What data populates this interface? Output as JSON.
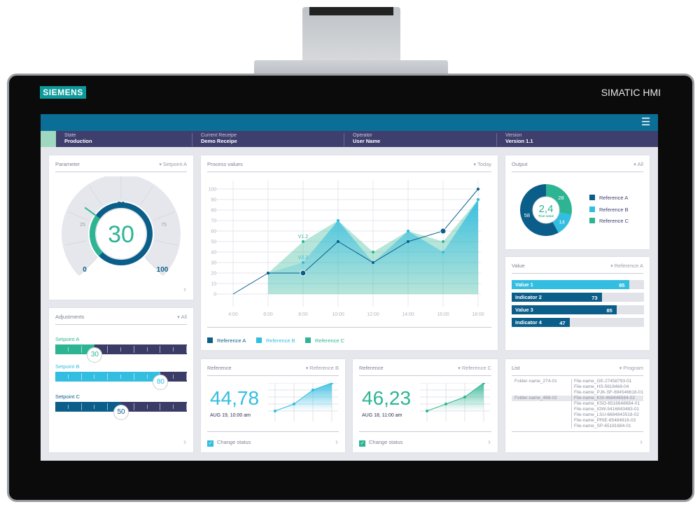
{
  "device": {
    "logo": "SIEMENS",
    "brand": "SIMATIC HMI"
  },
  "header": {
    "menu_icon": "hamburger-icon",
    "status": [
      {
        "label": "State",
        "value": "Production"
      },
      {
        "label": "Current Receipe",
        "value": "Demo Receipe"
      },
      {
        "label": "Operator",
        "value": "User Name"
      },
      {
        "label": "Version",
        "value": "Version 1.1"
      }
    ]
  },
  "colors": {
    "dark_blue": "#0b5e8a",
    "light_blue": "#33bde0",
    "green": "#2db593",
    "navy": "#3a3b67"
  },
  "parameter": {
    "title": "Parameter",
    "filter": "Setpoint A",
    "value": "30",
    "value_num": 30,
    "scale": [
      "0",
      "25",
      "50",
      "75",
      "100"
    ]
  },
  "adjustments": {
    "title": "Adjustments",
    "filter": "All",
    "sliders": [
      {
        "label": "Setpoint A",
        "value": "30",
        "level": 30,
        "color": "#2db593"
      },
      {
        "label": "Setpoint B",
        "value": "80",
        "level": 80,
        "color": "#33bde0"
      },
      {
        "label": "Setpoint C",
        "value": "50",
        "level": 50,
        "color": "#0b5e8a"
      }
    ]
  },
  "process": {
    "title": "Process values",
    "filter": "Today"
  },
  "chart_data": {
    "type": "area",
    "x": [
      "4:00",
      "6:00",
      "8:00",
      "10:00",
      "12:00",
      "14:00",
      "16:00",
      "18:00"
    ],
    "yticks": [
      0,
      10,
      20,
      30,
      40,
      50,
      60,
      70,
      80,
      90,
      100
    ],
    "ylim": [
      0,
      100
    ],
    "grid": true,
    "legend": "bottom",
    "series": [
      {
        "name": "Reference A",
        "color": "#0b5e8a",
        "values": [
          0,
          20,
          20,
          50,
          30,
          50,
          60,
          100
        ]
      },
      {
        "name": "Reference B",
        "color": "#33bde0",
        "values": [
          null,
          20,
          30,
          70,
          30,
          60,
          40,
          90
        ]
      },
      {
        "name": "Reference C",
        "color": "#2db593",
        "values": [
          null,
          20,
          50,
          70,
          40,
          60,
          50,
          90
        ]
      }
    ],
    "annotations": [
      {
        "text": "V1.2",
        "x": "8:00",
        "series": "Reference C"
      },
      {
        "text": "V2.3",
        "x": "8:00",
        "series": "Reference B"
      }
    ]
  },
  "output": {
    "title": "Output",
    "filter": "All",
    "center_value": "2,4",
    "center_label": "True value",
    "slices": [
      {
        "name": "Reference C",
        "value": 28,
        "color": "#2db593"
      },
      {
        "name": "Reference B",
        "value": 14,
        "color": "#33bde0"
      },
      {
        "name": "Reference A",
        "value": 58,
        "color": "#0b5e8a"
      }
    ],
    "legend": [
      "Reference A",
      "Reference B",
      "Reference C"
    ]
  },
  "value": {
    "title": "Value",
    "filter": "Reference A",
    "bars": [
      {
        "label": "Value 1",
        "value": 95,
        "color": "#33bde0"
      },
      {
        "label": "Indicator 2",
        "value": 73,
        "color": "#0b5e8a"
      },
      {
        "label": "Value 3",
        "value": 85,
        "color": "#0b5e8a"
      },
      {
        "label": "Indicator 4",
        "value": 47,
        "color": "#0b5e8a"
      }
    ]
  },
  "refB": {
    "title": "Reference",
    "filter": "Reference B",
    "value": "44,78",
    "date": "AUG 19, 10:00 am",
    "status": "Change status",
    "color": "#33bde0",
    "spark": [
      1,
      2,
      4,
      5
    ]
  },
  "refC": {
    "title": "Reference",
    "filter": "Reference C",
    "value": "46,23",
    "date": "AUG 18, 11:00 am",
    "status": "Change status",
    "color": "#2db593",
    "spark": [
      1,
      2,
      3,
      5
    ]
  },
  "list": {
    "title": "List",
    "filter": "Program",
    "folders": [
      "Folder-name_274-01",
      "Folder-name_468-02"
    ],
    "files": [
      "File-name_GE-27458793-01",
      "File-name_HS-5618468-04",
      "File-name_PJK-SF-694546618-01",
      "File-name_KSI-468446584-02",
      "File-name_KSO-6516848684-01",
      "File-name_IOW-5416843483-01",
      "File-name_LSU-6684843518-02",
      "File-name_PRIE-65484816-03",
      "File-name_SP-65181684-01"
    ]
  }
}
